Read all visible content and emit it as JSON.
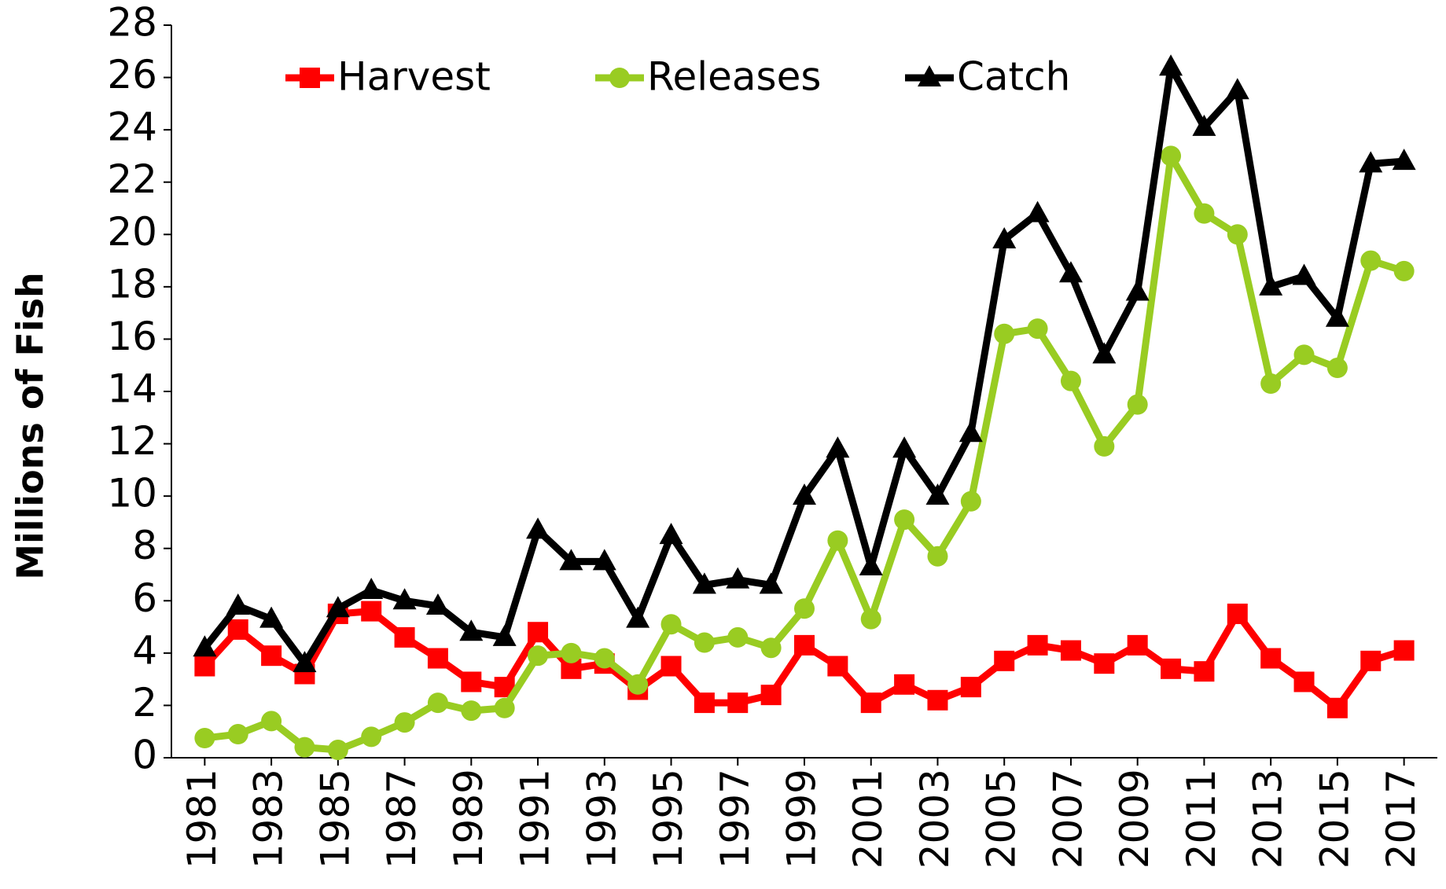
{
  "chart_data": {
    "type": "line",
    "x": [
      1981,
      1982,
      1983,
      1984,
      1985,
      1986,
      1987,
      1988,
      1989,
      1990,
      1991,
      1992,
      1993,
      1994,
      1995,
      1996,
      1997,
      1998,
      1999,
      2000,
      2001,
      2002,
      2003,
      2004,
      2005,
      2006,
      2007,
      2008,
      2009,
      2010,
      2011,
      2012,
      2013,
      2014,
      2015,
      2016,
      2017
    ],
    "xlim": [
      1980,
      2018
    ],
    "xticks": [
      1981,
      1983,
      1985,
      1987,
      1989,
      1991,
      1993,
      1995,
      1997,
      1999,
      2001,
      2003,
      2005,
      2007,
      2009,
      2011,
      2013,
      2015,
      2017
    ],
    "ylim": [
      0,
      28
    ],
    "yticks": [
      0,
      2,
      4,
      6,
      8,
      10,
      12,
      14,
      16,
      18,
      20,
      22,
      24,
      26,
      28
    ],
    "y_label": "Millions of Fish",
    "legend": "upper left",
    "grid": false,
    "series": [
      {
        "name": "Harvest",
        "color": "#ff0000",
        "marker": "square",
        "values": [
          3.5,
          4.9,
          3.9,
          3.2,
          5.5,
          5.6,
          4.6,
          3.8,
          2.9,
          2.7,
          4.8,
          3.4,
          3.6,
          2.6,
          3.5,
          2.1,
          2.1,
          2.4,
          4.3,
          3.5,
          2.1,
          2.8,
          2.2,
          2.7,
          3.7,
          4.3,
          4.1,
          3.6,
          4.3,
          3.4,
          3.3,
          5.5,
          3.8,
          2.9,
          1.9,
          3.7,
          4.1
        ]
      },
      {
        "name": "Releases",
        "color": "#99cc22",
        "marker": "circle",
        "values": [
          0.75,
          0.9,
          1.4,
          0.4,
          0.3,
          0.8,
          1.35,
          2.1,
          1.8,
          1.9,
          3.9,
          4.0,
          3.8,
          2.8,
          5.1,
          4.4,
          4.6,
          4.2,
          5.7,
          8.3,
          5.3,
          9.1,
          7.7,
          9.8,
          16.2,
          16.4,
          14.4,
          11.9,
          13.5,
          23.0,
          20.8,
          20.0,
          14.3,
          15.4,
          14.9,
          19.0,
          18.6
        ]
      },
      {
        "name": "Catch",
        "color": "#000000",
        "marker": "triangle",
        "values": [
          4.2,
          5.8,
          5.3,
          3.6,
          5.7,
          6.4,
          6.0,
          5.8,
          4.8,
          4.6,
          8.7,
          7.5,
          7.5,
          5.3,
          8.5,
          6.6,
          6.8,
          6.6,
          10.0,
          11.8,
          7.3,
          11.8,
          10.0,
          12.4,
          19.8,
          20.8,
          18.5,
          15.4,
          17.8,
          26.4,
          24.1,
          25.5,
          18.0,
          18.4,
          16.8,
          22.7,
          22.8
        ]
      }
    ]
  }
}
